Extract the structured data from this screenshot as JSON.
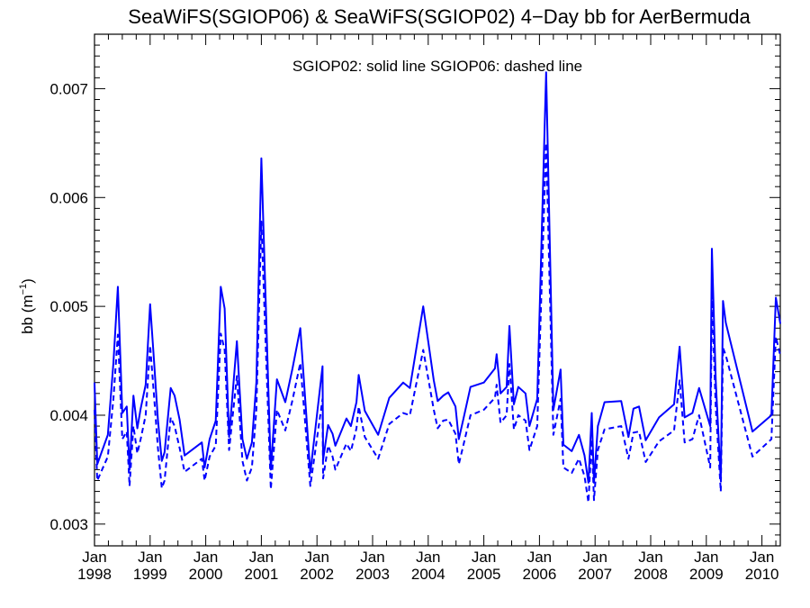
{
  "chart_data": {
    "type": "line",
    "title": "SeaWiFS(SGIOP06) & SeaWiFS(SGIOP02) 4−Day bb for AerBermuda",
    "annotation": "SGIOP02: solid line   SGIOP06: dashed line",
    "ylabel": "bb (m",
    "ylabel_sup": "−1",
    "ylabel_close": ")",
    "ylim": [
      0.0028,
      0.0075
    ],
    "xlim": [
      1998.0,
      2010.33
    ],
    "yticks": [
      0.003,
      0.004,
      0.005,
      0.006,
      0.007
    ],
    "ytick_labels": [
      "0.003",
      "0.004",
      "0.005",
      "0.006",
      "0.007"
    ],
    "xticks": [
      1998,
      1999,
      2000,
      2001,
      2002,
      2003,
      2004,
      2005,
      2006,
      2007,
      2008,
      2009,
      2010
    ],
    "xtick_month": "Jan",
    "xtick_years": [
      "1998",
      "1999",
      "2000",
      "2001",
      "2002",
      "2003",
      "2004",
      "2005",
      "2006",
      "2007",
      "2008",
      "2009",
      "2010"
    ],
    "grid": false,
    "line_color": "#0000ff",
    "x": [
      1998.0,
      1998.05,
      1998.24,
      1998.34,
      1998.42,
      1998.5,
      1998.58,
      1998.63,
      1998.7,
      1998.77,
      1998.83,
      1998.92,
      1999.0,
      1999.07,
      1999.14,
      1999.21,
      1999.26,
      1999.37,
      1999.44,
      1999.53,
      1999.62,
      1999.93,
      1999.98,
      2000.07,
      2000.18,
      2000.27,
      2000.34,
      2000.42,
      2000.56,
      2000.66,
      2000.74,
      2000.83,
      2000.91,
      2001.0,
      2001.17,
      2001.28,
      2001.43,
      2001.56,
      2001.7,
      2001.88,
      2002.1,
      2002.11,
      2002.2,
      2002.28,
      2002.33,
      2002.53,
      2002.61,
      2002.71,
      2002.75,
      2002.86,
      2003.1,
      2003.3,
      2003.55,
      2003.67,
      2003.91,
      2004.1,
      2004.17,
      2004.27,
      2004.36,
      2004.49,
      2004.55,
      2004.63,
      2004.76,
      2005.0,
      2005.2,
      2005.23,
      2005.3,
      2005.41,
      2005.46,
      2005.54,
      2005.62,
      2005.75,
      2005.82,
      2005.96,
      2006.12,
      2006.25,
      2006.38,
      2006.43,
      2006.58,
      2006.71,
      2006.81,
      2006.88,
      2006.94,
      2006.98,
      2007.05,
      2007.17,
      2007.47,
      2007.6,
      2007.69,
      2007.79,
      2007.91,
      2008.15,
      2008.42,
      2008.52,
      2008.61,
      2008.75,
      2008.87,
      2009.07,
      2009.1,
      2009.17,
      2009.26,
      2009.3,
      2009.35,
      2009.83,
      2010.17,
      2010.25,
      2010.33
    ],
    "series": [
      {
        "name": "SGIOP02",
        "values": [
          0.0043,
          0.00355,
          0.00382,
          0.00448,
          0.00518,
          0.00402,
          0.00408,
          0.0035,
          0.00418,
          0.00388,
          0.00406,
          0.00428,
          0.00502,
          0.0045,
          0.00396,
          0.00358,
          0.00366,
          0.00425,
          0.00418,
          0.00396,
          0.00363,
          0.00375,
          0.00352,
          0.00378,
          0.00395,
          0.00518,
          0.00498,
          0.0038,
          0.00468,
          0.00378,
          0.0036,
          0.00375,
          0.0043,
          0.00636,
          0.0035,
          0.00433,
          0.00412,
          0.00443,
          0.0048,
          0.00347,
          0.00445,
          0.00359,
          0.00391,
          0.00383,
          0.00372,
          0.00397,
          0.0039,
          0.00412,
          0.00437,
          0.00404,
          0.00382,
          0.00416,
          0.0043,
          0.00425,
          0.005,
          0.00432,
          0.00413,
          0.00418,
          0.00421,
          0.00408,
          0.00378,
          0.00396,
          0.00426,
          0.0043,
          0.00443,
          0.00456,
          0.0042,
          0.00426,
          0.00482,
          0.0041,
          0.00426,
          0.0042,
          0.0039,
          0.00415,
          0.00715,
          0.00405,
          0.00442,
          0.00373,
          0.00367,
          0.00382,
          0.00363,
          0.00338,
          0.00402,
          0.00338,
          0.0039,
          0.00412,
          0.00413,
          0.0038,
          0.00406,
          0.00408,
          0.00377,
          0.00398,
          0.0041,
          0.00463,
          0.00398,
          0.00402,
          0.00425,
          0.0039,
          0.00553,
          0.00431,
          0.0034,
          0.00505,
          0.00485,
          0.00385,
          0.004,
          0.00508,
          0.00484
        ]
      },
      {
        "name": "SGIOP06",
        "values": [
          0.00405,
          0.0034,
          0.00362,
          0.00415,
          0.00474,
          0.00378,
          0.00385,
          0.00335,
          0.0039,
          0.00365,
          0.00378,
          0.004,
          0.00464,
          0.00418,
          0.0037,
          0.00333,
          0.0034,
          0.00398,
          0.0039,
          0.0037,
          0.00348,
          0.0036,
          0.0034,
          0.00362,
          0.00372,
          0.00475,
          0.0046,
          0.00368,
          0.00436,
          0.00358,
          0.0034,
          0.00352,
          0.00405,
          0.00578,
          0.00332,
          0.00405,
          0.00386,
          0.00414,
          0.00448,
          0.00335,
          0.00415,
          0.00342,
          0.00372,
          0.00362,
          0.0035,
          0.00374,
          0.00367,
          0.00388,
          0.00408,
          0.0038,
          0.0036,
          0.00392,
          0.00402,
          0.004,
          0.0046,
          0.00405,
          0.00388,
          0.00395,
          0.00396,
          0.00383,
          0.00355,
          0.00372,
          0.004,
          0.00405,
          0.00416,
          0.00428,
          0.00393,
          0.004,
          0.00447,
          0.00387,
          0.004,
          0.00395,
          0.00368,
          0.0039,
          0.0065,
          0.00382,
          0.00415,
          0.00352,
          0.00347,
          0.0036,
          0.00344,
          0.0032,
          0.00378,
          0.00322,
          0.00368,
          0.00387,
          0.0039,
          0.0036,
          0.00384,
          0.00385,
          0.00357,
          0.00376,
          0.00386,
          0.00432,
          0.00375,
          0.00378,
          0.004,
          0.00352,
          0.0051,
          0.00407,
          0.0033,
          0.00462,
          0.00455,
          0.00362,
          0.00378,
          0.00472,
          0.00455
        ]
      }
    ]
  }
}
